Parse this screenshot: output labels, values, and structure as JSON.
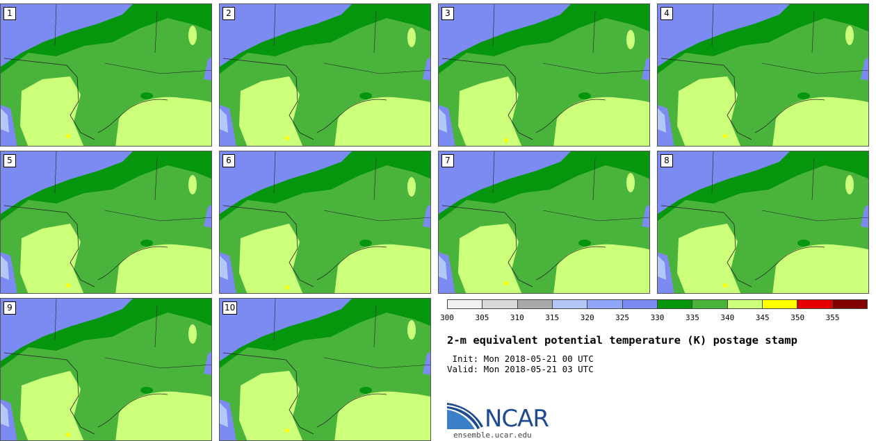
{
  "stamps": [
    {
      "label": "1"
    },
    {
      "label": "2"
    },
    {
      "label": "3"
    },
    {
      "label": "4"
    },
    {
      "label": "5"
    },
    {
      "label": "6"
    },
    {
      "label": "7"
    },
    {
      "label": "8"
    },
    {
      "label": "9"
    },
    {
      "label": "10"
    }
  ],
  "colorbar": {
    "colors": [
      "#f0f0f0",
      "#dadada",
      "#a9a9a9",
      "#b4c8f8",
      "#8fa6f9",
      "#7b8bf2",
      "#06960e",
      "#49b33c",
      "#ccff7a",
      "#ffff00",
      "#e50000",
      "#820000"
    ],
    "ticks": [
      "300",
      "305",
      "310",
      "315",
      "320",
      "325",
      "330",
      "335",
      "340",
      "345",
      "350",
      "355"
    ]
  },
  "title": "2-m equivalent potential temperature (K) postage stamp",
  "init_line": " Init: Mon 2018-05-21 00 UTC",
  "valid_line": "Valid: Mon 2018-05-21 03 UTC",
  "logo": {
    "text": "NCAR",
    "url": "ensemble.ucar.edu",
    "color": "#1d4b8f"
  },
  "map_colors": {
    "cool": "#7b8bf2",
    "pale_cool": "#b4c8f8",
    "dark_green": "#06960e",
    "mid_green": "#49b33c",
    "light_green": "#ccff7a",
    "yellow": "#ffff00"
  }
}
